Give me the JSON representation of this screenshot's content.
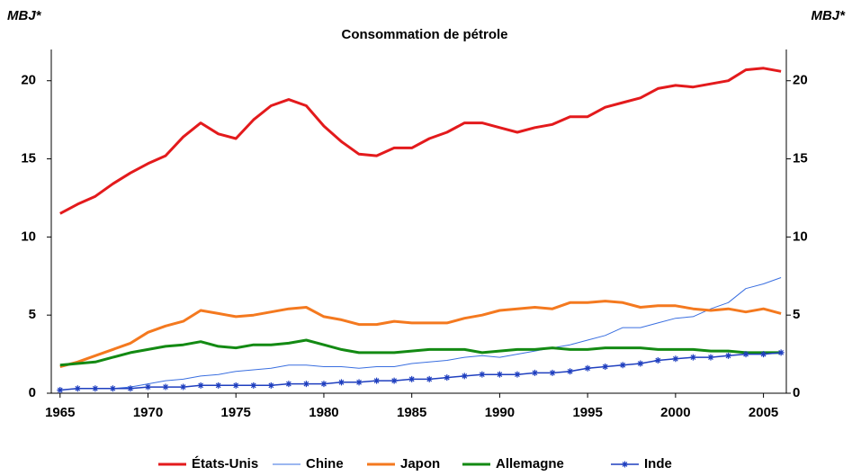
{
  "chart_data": {
    "type": "line",
    "title": "Consommation de pétrole",
    "ylabel": "MBJ*",
    "y2label": "MBJ*",
    "x": [
      1965,
      1966,
      1967,
      1968,
      1969,
      1970,
      1971,
      1972,
      1973,
      1974,
      1975,
      1976,
      1977,
      1978,
      1979,
      1980,
      1981,
      1982,
      1983,
      1984,
      1985,
      1986,
      1987,
      1988,
      1989,
      1990,
      1991,
      1992,
      1993,
      1994,
      1995,
      1996,
      1997,
      1998,
      1999,
      2000,
      2001,
      2002,
      2003,
      2004,
      2005,
      2006
    ],
    "xlim": [
      1964.5,
      2006.3
    ],
    "xticks": [
      1965,
      1970,
      1975,
      1980,
      1985,
      1990,
      1995,
      2000,
      2005
    ],
    "ylim": [
      0,
      22
    ],
    "yticks": [
      0,
      5,
      10,
      15,
      20
    ],
    "y2lim": [
      0,
      22
    ],
    "y2ticks": [
      0,
      5,
      10,
      15,
      20
    ],
    "legend": "bottom",
    "series": [
      {
        "name": "États-Unis",
        "color": "#e31a1c",
        "width": 3,
        "values": [
          11.5,
          12.1,
          12.6,
          13.4,
          14.1,
          14.7,
          15.2,
          16.4,
          17.3,
          16.6,
          16.3,
          17.5,
          18.4,
          18.8,
          18.4,
          17.1,
          16.1,
          15.3,
          15.2,
          15.7,
          15.7,
          16.3,
          16.7,
          17.3,
          17.3,
          17.0,
          16.7,
          17.0,
          17.2,
          17.7,
          17.7,
          18.3,
          18.6,
          18.9,
          19.5,
          19.7,
          19.6,
          19.8,
          20.0,
          20.7,
          20.8,
          20.6
        ]
      },
      {
        "name": "Chine",
        "color": "#3a6fe0",
        "width": 1,
        "values": [
          0.2,
          0.3,
          0.3,
          0.3,
          0.4,
          0.6,
          0.8,
          0.9,
          1.1,
          1.2,
          1.4,
          1.5,
          1.6,
          1.8,
          1.8,
          1.7,
          1.7,
          1.6,
          1.7,
          1.7,
          1.9,
          2.0,
          2.1,
          2.3,
          2.4,
          2.3,
          2.5,
          2.7,
          2.9,
          3.1,
          3.4,
          3.7,
          4.2,
          4.2,
          4.5,
          4.8,
          4.9,
          5.4,
          5.8,
          6.7,
          7.0,
          7.4
        ]
      },
      {
        "name": "Japon",
        "color": "#f4791f",
        "width": 3,
        "values": [
          1.7,
          2.0,
          2.4,
          2.8,
          3.2,
          3.9,
          4.3,
          4.6,
          5.3,
          5.1,
          4.9,
          5.0,
          5.2,
          5.4,
          5.5,
          4.9,
          4.7,
          4.4,
          4.4,
          4.6,
          4.5,
          4.5,
          4.5,
          4.8,
          5.0,
          5.3,
          5.4,
          5.5,
          5.4,
          5.8,
          5.8,
          5.9,
          5.8,
          5.5,
          5.6,
          5.6,
          5.4,
          5.3,
          5.4,
          5.2,
          5.4,
          5.1
        ]
      },
      {
        "name": "Allemagne",
        "color": "#138a13",
        "width": 3,
        "values": [
          1.8,
          1.9,
          2.0,
          2.3,
          2.6,
          2.8,
          3.0,
          3.1,
          3.3,
          3.0,
          2.9,
          3.1,
          3.1,
          3.2,
          3.4,
          3.1,
          2.8,
          2.6,
          2.6,
          2.6,
          2.7,
          2.8,
          2.8,
          2.8,
          2.6,
          2.7,
          2.8,
          2.8,
          2.9,
          2.8,
          2.8,
          2.9,
          2.9,
          2.9,
          2.8,
          2.8,
          2.8,
          2.7,
          2.7,
          2.6,
          2.6,
          2.6
        ]
      },
      {
        "name": "Inde",
        "color": "#1f3fbf",
        "width": 1.5,
        "marker": "star",
        "values": [
          0.2,
          0.3,
          0.3,
          0.3,
          0.3,
          0.4,
          0.4,
          0.4,
          0.5,
          0.5,
          0.5,
          0.5,
          0.5,
          0.6,
          0.6,
          0.6,
          0.7,
          0.7,
          0.8,
          0.8,
          0.9,
          0.9,
          1.0,
          1.1,
          1.2,
          1.2,
          1.2,
          1.3,
          1.3,
          1.4,
          1.6,
          1.7,
          1.8,
          1.9,
          2.1,
          2.2,
          2.3,
          2.3,
          2.4,
          2.5,
          2.5,
          2.6
        ]
      }
    ]
  }
}
